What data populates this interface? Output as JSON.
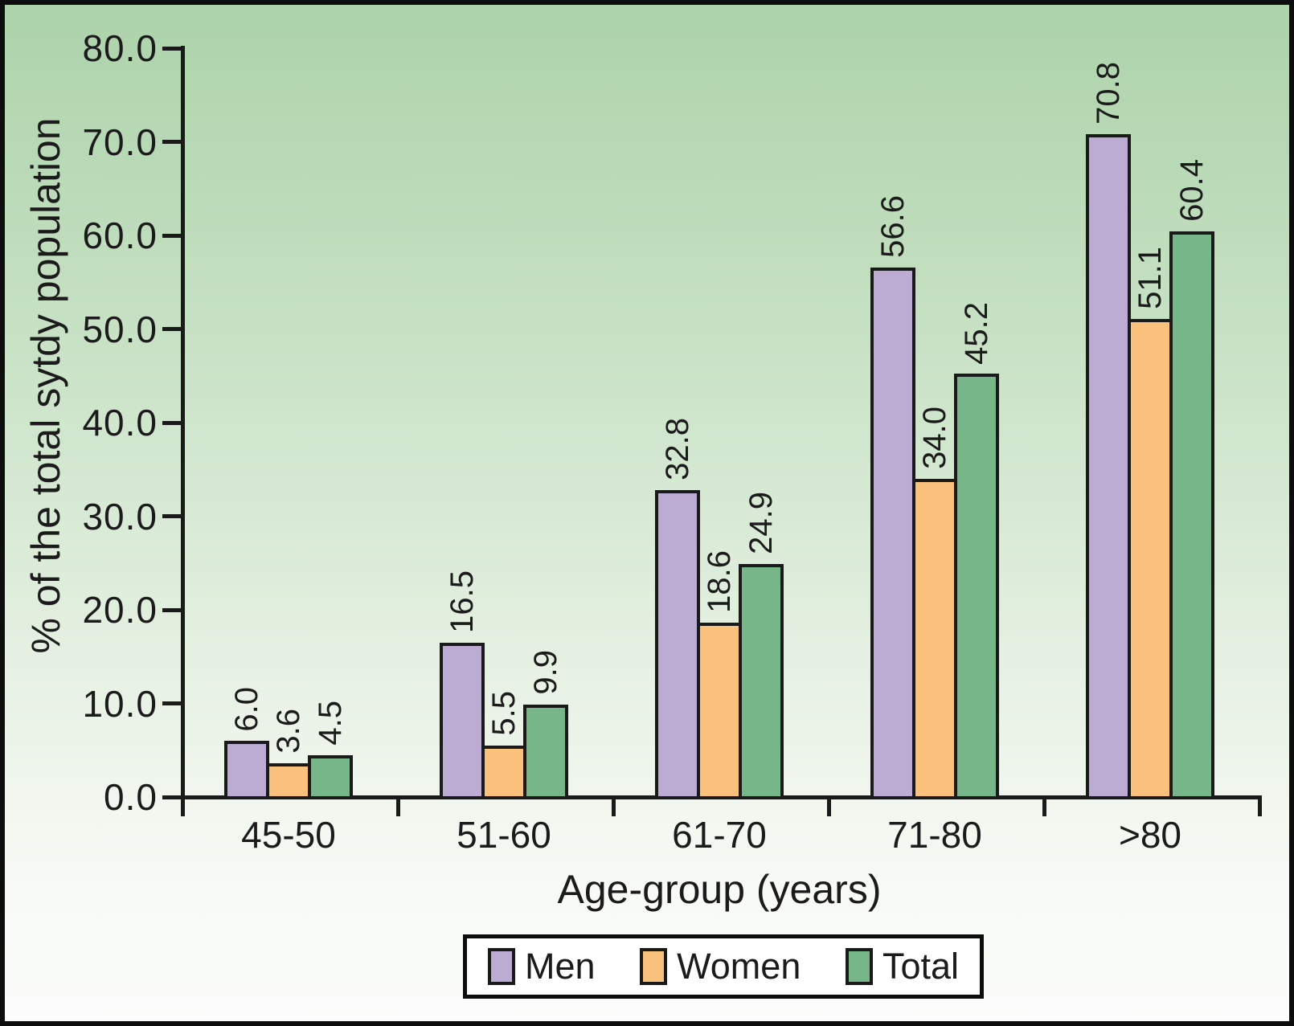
{
  "chart_data": {
    "type": "bar",
    "title": "",
    "categories": [
      "45-50",
      "51-60",
      "61-70",
      "71-80",
      ">80"
    ],
    "series": [
      {
        "name": "Men",
        "color": "#bcacd3",
        "values": [
          6.0,
          16.5,
          32.8,
          56.6,
          70.8
        ]
      },
      {
        "name": "Women",
        "color": "#fac17d",
        "values": [
          3.6,
          5.5,
          18.6,
          34.0,
          51.1
        ]
      },
      {
        "name": "Total",
        "color": "#76b689",
        "values": [
          4.5,
          9.9,
          24.9,
          45.2,
          60.4
        ]
      }
    ],
    "xlabel": "Age-group (years)",
    "ylabel": "% of the total sytdy population",
    "ylim": [
      0,
      80
    ],
    "yticks": [
      0,
      10,
      20,
      30,
      40,
      50,
      60,
      70,
      80
    ],
    "ytick_labels": [
      "0.0",
      "10.0",
      "20.0",
      "30.0",
      "40.0",
      "50.0",
      "60.0",
      "70.0",
      "80.0"
    ],
    "value_label_format": "one_decimal",
    "value_labels_rotated": true,
    "grid": false,
    "legend_position": "bottom",
    "colors": {
      "axis": "#1a1a1a",
      "background_top": "#acd3aa",
      "background_bottom": "#fcfdfc",
      "legend_background": "#ffffff"
    }
  }
}
